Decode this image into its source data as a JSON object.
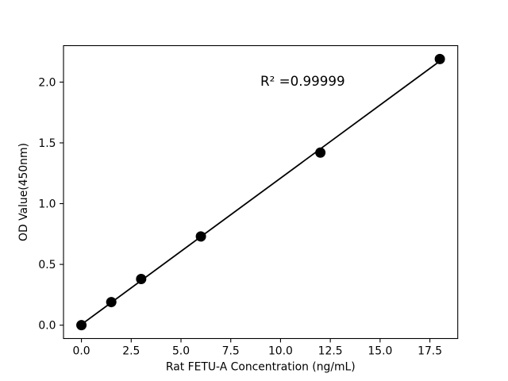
{
  "figure": {
    "background": "#ffffff"
  },
  "chart_data": {
    "type": "scatter",
    "title": "",
    "xlabel": "Rat FETU-A Concentration (ng/mL)",
    "ylabel": "OD Value(450nm)",
    "x": [
      0,
      1.5,
      3,
      6,
      12,
      18
    ],
    "y": [
      0.0,
      0.19,
      0.38,
      0.73,
      1.42,
      2.19
    ],
    "fit": {
      "type": "linear",
      "show_line": true,
      "r_squared": 0.99999,
      "r_squared_label": "R² =0.99999"
    },
    "x_ticks": {
      "values": [
        0,
        2.5,
        5,
        7.5,
        10,
        12.5,
        15,
        17.5
      ],
      "labels": [
        "0.0",
        "2.5",
        "5.0",
        "7.5",
        "10.0",
        "12.5",
        "15.0",
        "17.5"
      ]
    },
    "y_ticks": {
      "values": [
        0,
        0.5,
        1,
        1.5,
        2
      ],
      "labels": [
        "0.0",
        "0.5",
        "1.0",
        "1.5",
        "2.0"
      ]
    },
    "xlim": [
      -0.9,
      18.9
    ],
    "ylim": [
      -0.11,
      2.3
    ],
    "grid": false,
    "legend": null,
    "colors": {
      "marker": "#000000",
      "line": "#000000",
      "axis": "#000000",
      "text": "#000000"
    }
  }
}
